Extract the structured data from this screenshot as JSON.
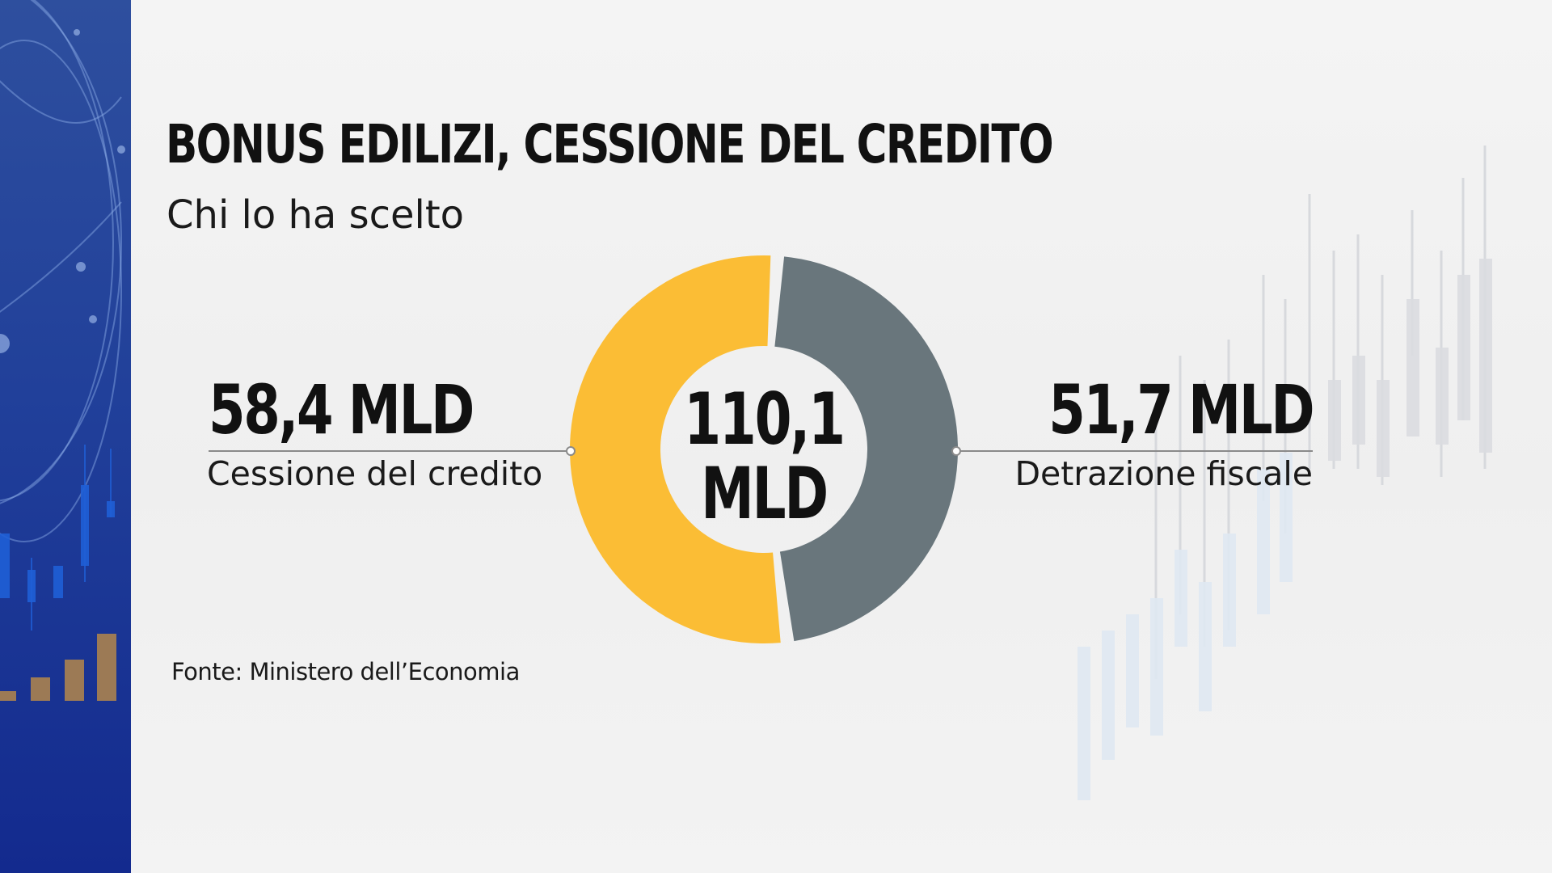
{
  "colors": {
    "accent_yellow": "#fbbd35",
    "accent_grey": "#69767c",
    "left_band": "#21409a"
  },
  "title": "BONUS EDILIZI, CESSIONE DEL CREDITO",
  "subtitle": "Chi lo ha scelto",
  "source": "Fonte: Ministero dell’Economia",
  "chart_data": {
    "type": "pie",
    "title": "BONUS EDILIZI, CESSIONE DEL CREDITO",
    "subtitle": "Chi lo ha scelto",
    "total": {
      "value": 110.1,
      "number": "110,1",
      "unit": "MLD"
    },
    "slices": [
      {
        "label": "Cessione del credito",
        "value": 58.4,
        "display": "58,4 MLD",
        "color": "#fbbd35"
      },
      {
        "label": "Detrazione fiscale",
        "value": 51.7,
        "display": "51,7 MLD",
        "color": "#69767c"
      }
    ]
  }
}
